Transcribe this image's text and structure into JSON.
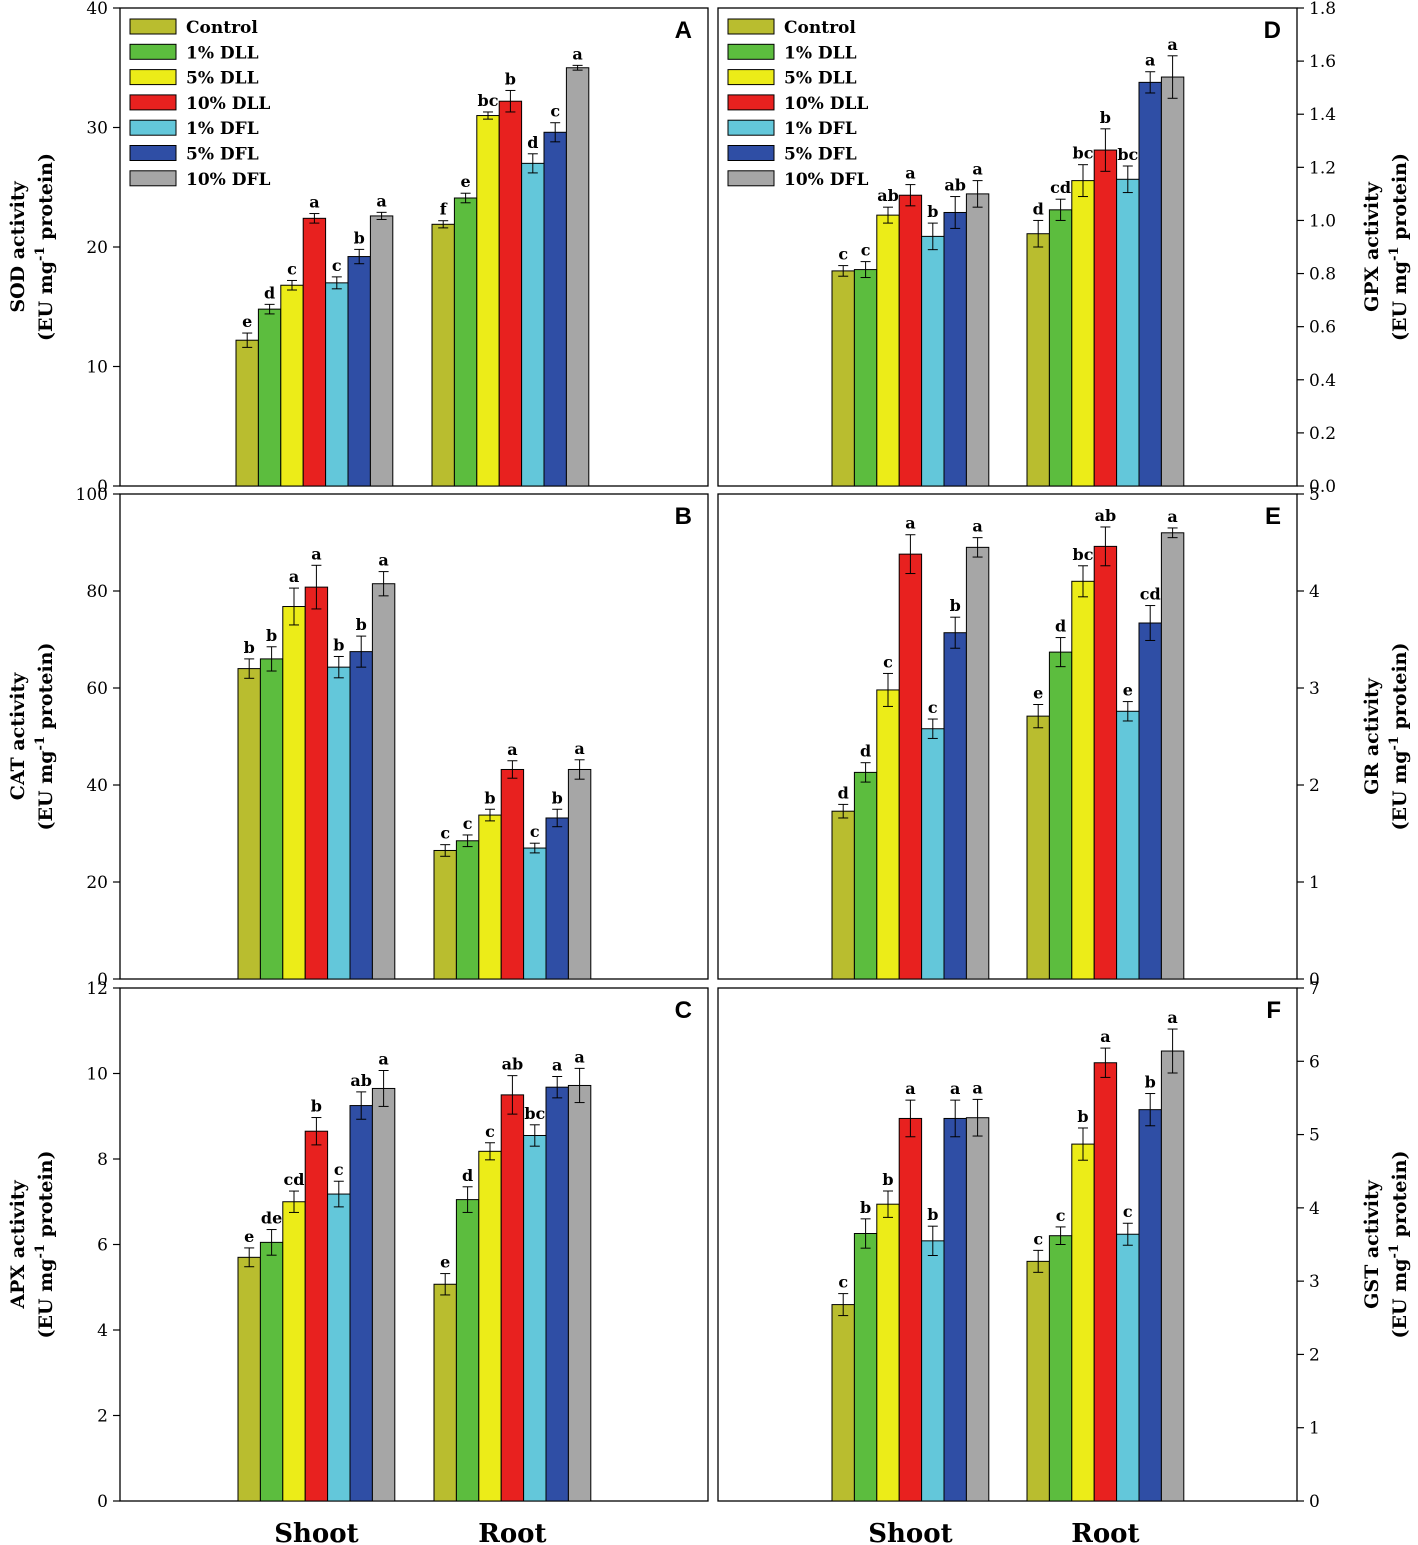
{
  "figure": {
    "groups": [
      "Shoot",
      "Root"
    ],
    "treatments": [
      "Control",
      "1% DLL",
      "5% DLL",
      "10% DLL",
      "1% DFL",
      "5% DFL",
      "10% DFL"
    ],
    "colors": [
      "#b9bd2f",
      "#5cbd3e",
      "#ecec18",
      "#e8211f",
      "#63c7da",
      "#2f4ea5",
      "#a6a6a6"
    ]
  },
  "chart_data": [
    {
      "id": "A",
      "type": "bar",
      "letter": "A",
      "ylabel_line1": "SOD activity",
      "ylabel_line2_pre": "(EU mg",
      "ylabel_sup": "-1",
      "ylabel_line2_post": " protein)",
      "ylim": [
        0,
        40
      ],
      "ticks": [
        "0",
        "10",
        "20",
        "30",
        "40"
      ],
      "categories": [
        "Shoot",
        "Root"
      ],
      "show_legend": true,
      "show_categories": false,
      "series": [
        {
          "name": "Control",
          "values": [
            12.2,
            21.9
          ],
          "errors": [
            0.6,
            0.3
          ],
          "labels": [
            "e",
            "f"
          ]
        },
        {
          "name": "1% DLL",
          "values": [
            14.8,
            24.1
          ],
          "errors": [
            0.4,
            0.4
          ],
          "labels": [
            "d",
            "e"
          ]
        },
        {
          "name": "5% DLL",
          "values": [
            16.8,
            31.0
          ],
          "errors": [
            0.4,
            0.3
          ],
          "labels": [
            "c",
            "bc"
          ]
        },
        {
          "name": "10% DLL",
          "values": [
            22.4,
            32.2
          ],
          "errors": [
            0.4,
            0.9
          ],
          "labels": [
            "a",
            "b"
          ]
        },
        {
          "name": "1% DFL",
          "values": [
            17.0,
            27.0
          ],
          "errors": [
            0.5,
            0.8
          ],
          "labels": [
            "c",
            "d"
          ]
        },
        {
          "name": "5% DFL",
          "values": [
            19.2,
            29.6
          ],
          "errors": [
            0.6,
            0.8
          ],
          "labels": [
            "b",
            "c"
          ]
        },
        {
          "name": "10% DFL",
          "values": [
            22.6,
            35.0
          ],
          "errors": [
            0.3,
            0.2
          ],
          "labels": [
            "a",
            "a"
          ]
        }
      ]
    },
    {
      "id": "B",
      "type": "bar",
      "letter": "B",
      "ylabel_line1": "CAT activity",
      "ylabel_line2_pre": "(EU mg",
      "ylabel_sup": "-1",
      "ylabel_line2_post": " protein)",
      "ylim": [
        0,
        100
      ],
      "ticks": [
        "0",
        "20",
        "40",
        "60",
        "80",
        "100"
      ],
      "categories": [
        "Shoot",
        "Root"
      ],
      "show_legend": false,
      "show_categories": false,
      "series": [
        {
          "name": "Control",
          "values": [
            64.0,
            26.5
          ],
          "errors": [
            2.0,
            1.2
          ],
          "labels": [
            "b",
            "c"
          ]
        },
        {
          "name": "1% DLL",
          "values": [
            66.0,
            28.5
          ],
          "errors": [
            2.5,
            1.2
          ],
          "labels": [
            "b",
            "c"
          ]
        },
        {
          "name": "5% DLL",
          "values": [
            76.8,
            33.8
          ],
          "errors": [
            3.8,
            1.2
          ],
          "labels": [
            "a",
            "b"
          ]
        },
        {
          "name": "10% DLL",
          "values": [
            80.8,
            43.2
          ],
          "errors": [
            4.5,
            1.8
          ],
          "labels": [
            "a",
            "a"
          ]
        },
        {
          "name": "1% DFL",
          "values": [
            64.3,
            27.0
          ],
          "errors": [
            2.2,
            1.0
          ],
          "labels": [
            "b",
            "c"
          ]
        },
        {
          "name": "5% DFL",
          "values": [
            67.5,
            33.2
          ],
          "errors": [
            3.2,
            1.8
          ],
          "labels": [
            "b",
            "b"
          ]
        },
        {
          "name": "10% DFL",
          "values": [
            81.5,
            43.2
          ],
          "errors": [
            2.5,
            2.0
          ],
          "labels": [
            "a",
            "a"
          ]
        }
      ]
    },
    {
      "id": "C",
      "type": "bar",
      "letter": "C",
      "ylabel_line1": "APX activity",
      "ylabel_line2_pre": "(EU mg",
      "ylabel_sup": "-1",
      "ylabel_line2_post": " protein)",
      "ylim": [
        0,
        12
      ],
      "ticks": [
        "0",
        "2",
        "4",
        "6",
        "8",
        "10",
        "12"
      ],
      "categories": [
        "Shoot",
        "Root"
      ],
      "show_legend": false,
      "show_categories": true,
      "series": [
        {
          "name": "Control",
          "values": [
            5.7,
            5.07
          ],
          "errors": [
            0.22,
            0.25
          ],
          "labels": [
            "e",
            "e"
          ]
        },
        {
          "name": "1% DLL",
          "values": [
            6.05,
            7.05
          ],
          "errors": [
            0.3,
            0.3
          ],
          "labels": [
            "de",
            "d"
          ]
        },
        {
          "name": "5% DLL",
          "values": [
            7.0,
            8.18
          ],
          "errors": [
            0.25,
            0.2
          ],
          "labels": [
            "cd",
            "c"
          ]
        },
        {
          "name": "10% DLL",
          "values": [
            8.65,
            9.5
          ],
          "errors": [
            0.32,
            0.45
          ],
          "labels": [
            "b",
            "ab"
          ]
        },
        {
          "name": "1% DFL",
          "values": [
            7.18,
            8.55
          ],
          "errors": [
            0.3,
            0.25
          ],
          "labels": [
            "c",
            "bc"
          ]
        },
        {
          "name": "5% DFL",
          "values": [
            9.25,
            9.68
          ],
          "errors": [
            0.32,
            0.25
          ],
          "labels": [
            "ab",
            "a"
          ]
        },
        {
          "name": "10% DFL",
          "values": [
            9.65,
            9.72
          ],
          "errors": [
            0.42,
            0.4
          ],
          "labels": [
            "a",
            "a"
          ]
        }
      ]
    },
    {
      "id": "D",
      "type": "bar",
      "letter": "D",
      "ylabel_line1": "GPX activity",
      "ylabel_line2_pre": "(EU mg",
      "ylabel_sup": "-1",
      "ylabel_line2_post": " protein)",
      "ylim": [
        0,
        1.8
      ],
      "ticks": [
        "0.0",
        "0.2",
        "0.4",
        "0.6",
        "0.8",
        "1.0",
        "1.2",
        "1.4",
        "1.6",
        "1.8"
      ],
      "categories": [
        "Shoot",
        "Root"
      ],
      "show_legend": true,
      "show_categories": false,
      "series": [
        {
          "name": "Control",
          "values": [
            0.81,
            0.95
          ],
          "errors": [
            0.02,
            0.05
          ],
          "labels": [
            "c",
            "d"
          ]
        },
        {
          "name": "1% DLL",
          "values": [
            0.815,
            1.04
          ],
          "errors": [
            0.03,
            0.04
          ],
          "labels": [
            "c",
            "cd"
          ]
        },
        {
          "name": "5% DLL",
          "values": [
            1.02,
            1.15
          ],
          "errors": [
            0.03,
            0.06
          ],
          "labels": [
            "ab",
            "bc"
          ]
        },
        {
          "name": "10% DLL",
          "values": [
            1.095,
            1.265
          ],
          "errors": [
            0.04,
            0.08
          ],
          "labels": [
            "a",
            "b"
          ]
        },
        {
          "name": "1% DFL",
          "values": [
            0.94,
            1.155
          ],
          "errors": [
            0.05,
            0.05
          ],
          "labels": [
            "b",
            "bc"
          ]
        },
        {
          "name": "5% DFL",
          "values": [
            1.03,
            1.52
          ],
          "errors": [
            0.06,
            0.04
          ],
          "labels": [
            "ab",
            "a"
          ]
        },
        {
          "name": "10% DFL",
          "values": [
            1.1,
            1.54
          ],
          "errors": [
            0.05,
            0.08
          ],
          "labels": [
            "a",
            "a"
          ]
        }
      ]
    },
    {
      "id": "E",
      "type": "bar",
      "letter": "E",
      "ylabel_line1": "GR activity",
      "ylabel_line2_pre": "(EU mg",
      "ylabel_sup": "-1",
      "ylabel_line2_post": " protein)",
      "ylim": [
        0,
        5
      ],
      "ticks": [
        "0",
        "1",
        "2",
        "3",
        "4",
        "5"
      ],
      "categories": [
        "Shoot",
        "Root"
      ],
      "show_legend": false,
      "show_categories": false,
      "series": [
        {
          "name": "Control",
          "values": [
            1.73,
            2.71
          ],
          "errors": [
            0.07,
            0.12
          ],
          "labels": [
            "d",
            "e"
          ]
        },
        {
          "name": "1% DLL",
          "values": [
            2.13,
            3.37
          ],
          "errors": [
            0.1,
            0.15
          ],
          "labels": [
            "d",
            "d"
          ]
        },
        {
          "name": "5% DLL",
          "values": [
            2.98,
            4.1
          ],
          "errors": [
            0.17,
            0.16
          ],
          "labels": [
            "c",
            "bc"
          ]
        },
        {
          "name": "10% DLL",
          "values": [
            4.38,
            4.46
          ],
          "errors": [
            0.2,
            0.2
          ],
          "labels": [
            "a",
            "ab"
          ]
        },
        {
          "name": "1% DFL",
          "values": [
            2.58,
            2.76
          ],
          "errors": [
            0.1,
            0.1
          ],
          "labels": [
            "c",
            "e"
          ]
        },
        {
          "name": "5% DFL",
          "values": [
            3.57,
            3.67
          ],
          "errors": [
            0.16,
            0.18
          ],
          "labels": [
            "b",
            "cd"
          ]
        },
        {
          "name": "10% DFL",
          "values": [
            4.45,
            4.6
          ],
          "errors": [
            0.1,
            0.05
          ],
          "labels": [
            "a",
            "a"
          ]
        }
      ]
    },
    {
      "id": "F",
      "type": "bar",
      "letter": "F",
      "ylabel_line1": "GST activity",
      "ylabel_line2_pre": "(EU mg",
      "ylabel_sup": "-1",
      "ylabel_line2_post": " protein)",
      "ylim": [
        0,
        7
      ],
      "ticks": [
        "0",
        "1",
        "2",
        "3",
        "4",
        "5",
        "6",
        "7"
      ],
      "categories": [
        "Shoot",
        "Root"
      ],
      "show_legend": false,
      "show_categories": true,
      "series": [
        {
          "name": "Control",
          "values": [
            2.68,
            3.27
          ],
          "errors": [
            0.15,
            0.15
          ],
          "labels": [
            "c",
            "c"
          ]
        },
        {
          "name": "1% DLL",
          "values": [
            3.65,
            3.62
          ],
          "errors": [
            0.2,
            0.12
          ],
          "labels": [
            "b",
            "c"
          ]
        },
        {
          "name": "5% DLL",
          "values": [
            4.05,
            4.87
          ],
          "errors": [
            0.18,
            0.22
          ],
          "labels": [
            "b",
            "b"
          ]
        },
        {
          "name": "10% DLL",
          "values": [
            5.22,
            5.98
          ],
          "errors": [
            0.25,
            0.2
          ],
          "labels": [
            "a",
            "a"
          ]
        },
        {
          "name": "1% DFL",
          "values": [
            3.55,
            3.64
          ],
          "errors": [
            0.2,
            0.15
          ],
          "labels": [
            "b",
            "c"
          ]
        },
        {
          "name": "5% DFL",
          "values": [
            5.22,
            5.34
          ],
          "errors": [
            0.25,
            0.22
          ],
          "labels": [
            "a",
            "b"
          ]
        },
        {
          "name": "10% DFL",
          "values": [
            5.23,
            6.14
          ],
          "errors": [
            0.25,
            0.3
          ],
          "labels": [
            "a",
            "a"
          ]
        }
      ]
    }
  ]
}
